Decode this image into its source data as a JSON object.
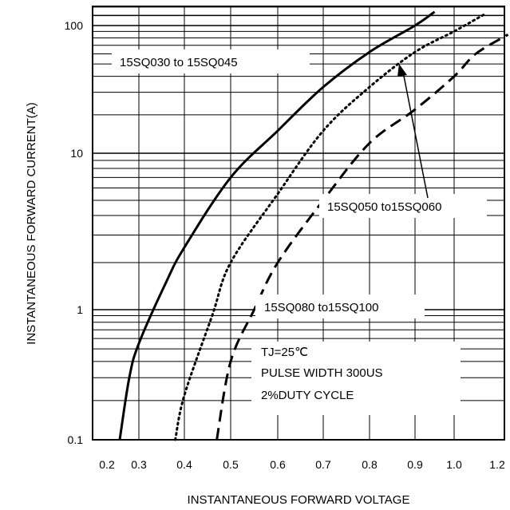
{
  "chart_data": {
    "type": "line",
    "xlabel": "INSTANTANEOUS FORWARD VOLTAGE",
    "ylabel": "INSTANTANEOUS FORWARD CURRENT(A)",
    "x_ticks": [
      "0.2",
      "0.3",
      "0.4",
      "0.5",
      "0.6",
      "0.7",
      "0.8",
      "0.9",
      "1.0",
      "1.2"
    ],
    "y_ticks": [
      "0.1",
      "1",
      "10",
      "100"
    ],
    "y_scale": "log",
    "ylim": [
      0.1,
      140
    ],
    "grid": true,
    "series": [
      {
        "name": "15SQ030 to 15SQ045",
        "style": "solid",
        "color": "#000000",
        "points": [
          [
            0.24,
            0.1
          ],
          [
            0.27,
            0.3
          ],
          [
            0.3,
            0.55
          ],
          [
            0.36,
            1.5
          ],
          [
            0.4,
            2.5
          ],
          [
            0.5,
            7.0
          ],
          [
            0.6,
            15
          ],
          [
            0.7,
            33
          ],
          [
            0.8,
            62
          ],
          [
            0.9,
            100
          ],
          [
            0.95,
            128
          ]
        ]
      },
      {
        "name": "15SQ050 to15SQ060",
        "style": "dotted",
        "color": "#000000",
        "points": [
          [
            0.38,
            0.1
          ],
          [
            0.4,
            0.22
          ],
          [
            0.46,
            0.9
          ],
          [
            0.5,
            2.0
          ],
          [
            0.6,
            5.5
          ],
          [
            0.7,
            15
          ],
          [
            0.8,
            33
          ],
          [
            0.9,
            62
          ],
          [
            1.0,
            90
          ],
          [
            1.15,
            125
          ]
        ]
      },
      {
        "name": "15SQ080 to15SQ100",
        "style": "dashed",
        "color": "#000000",
        "points": [
          [
            0.47,
            0.1
          ],
          [
            0.5,
            0.4
          ],
          [
            0.55,
            1.0
          ],
          [
            0.6,
            2.0
          ],
          [
            0.7,
            5.0
          ],
          [
            0.8,
            12
          ],
          [
            0.9,
            22
          ],
          [
            1.0,
            40
          ],
          [
            1.1,
            60
          ],
          [
            1.25,
            85
          ]
        ]
      }
    ],
    "annotations": [
      "TJ=25℃",
      "PULSE WIDTH 300US",
      "2%DUTY CYCLE"
    ]
  }
}
